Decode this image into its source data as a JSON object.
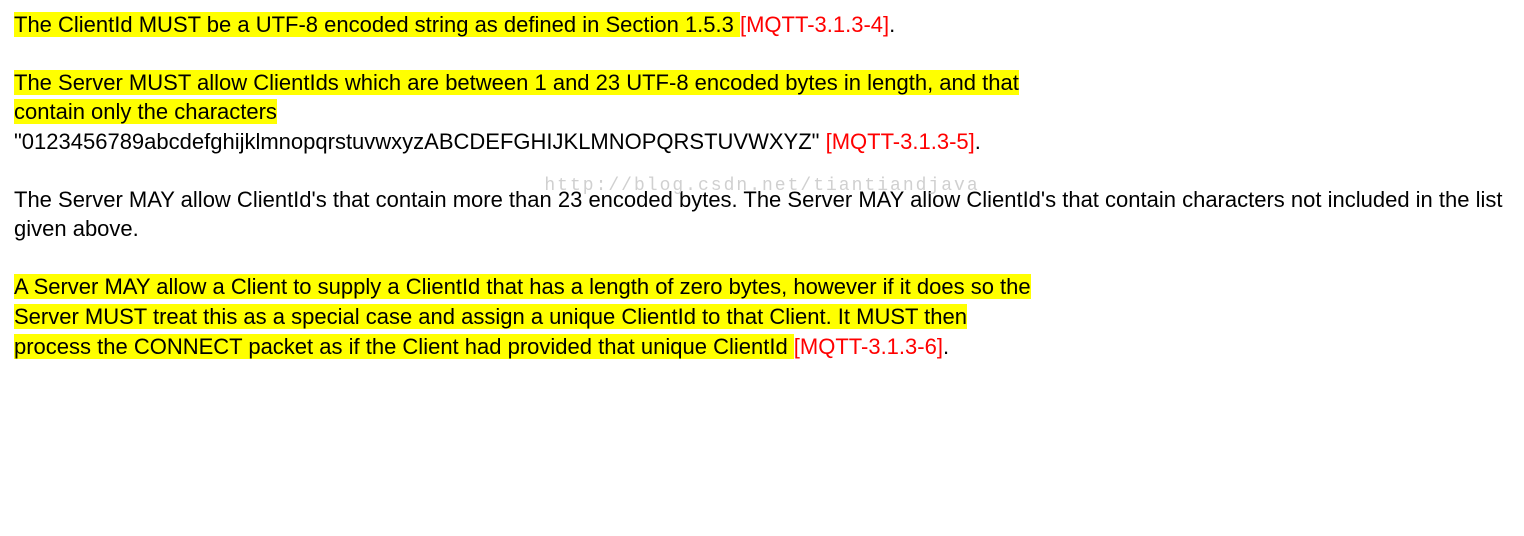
{
  "watermark": "http://blog.csdn.net/tiantiandjava",
  "p1": {
    "hl": "The ClientId MUST be a UTF-8 encoded string as defined in Section 1.5.3 ",
    "ref": "[MQTT-3.1.3-4]",
    "tail": "."
  },
  "p2": {
    "hl_line1": "The Server MUST allow ClientIds which are between 1 and 23 UTF-8 encoded bytes in length, and that",
    "hl_line2": "contain only the characters",
    "plain": "\"0123456789abcdefghijklmnopqrstuvwxyzABCDEFGHIJKLMNOPQRSTUVWXYZ\" ",
    "ref": "[MQTT-3.1.3-5]",
    "tail": "."
  },
  "p3": {
    "text": "The Server MAY allow ClientId's that contain more than 23 encoded bytes. The Server MAY allow ClientId's that contain characters not included in the list given above."
  },
  "p4": {
    "hl_a": "A Server MAY allow a Client to supply a ClientId that has a length of zero bytes, however if it does so the",
    "hl_b": "Server MUST treat this as a special case and assign a unique ClientId to that Client. It MUST then",
    "hl_c": "process the CONNECT packet as if the Client had provided that unique ClientId ",
    "ref": "[MQTT-3.1.3-6]",
    "tail": "."
  }
}
